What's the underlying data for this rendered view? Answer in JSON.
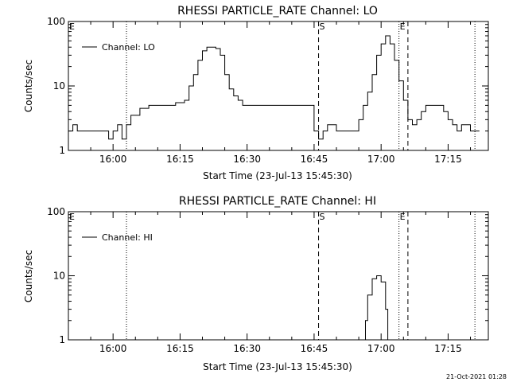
{
  "footer_timestamp": "21-Oct-2021 01:28",
  "chart_data": [
    {
      "type": "line",
      "title": "RHESSI PARTICLE_RATE Channel: LO",
      "xlabel": "Start Time (23-Jul-13 15:45:30)",
      "ylabel": "Counts/sec",
      "yscale": "log",
      "ylim": [
        1,
        100
      ],
      "xlim": [
        "15:50",
        "17:24"
      ],
      "x_ticks": [
        "16:00",
        "16:15",
        "16:30",
        "16:45",
        "17:00",
        "17:15"
      ],
      "y_ticks": [
        "1",
        "10",
        "100"
      ],
      "legend": {
        "placement": "top-left",
        "entries": [
          "Channel: LO"
        ]
      },
      "markers": [
        {
          "label": "E",
          "time": "15:50",
          "style": "dotted"
        },
        {
          "time": "16:03",
          "style": "dotted"
        },
        {
          "label": "S",
          "time": "16:46",
          "style": "dashed"
        },
        {
          "label": "E",
          "time": "17:04",
          "style": "dotted"
        },
        {
          "time": "17:06",
          "style": "dashed"
        },
        {
          "time": "17:21",
          "style": "dotted"
        }
      ],
      "series": [
        {
          "name": "Channel: LO",
          "x": [
            "15:50",
            "15:51",
            "15:52",
            "15:55",
            "15:58",
            "15:59",
            "16:00",
            "16:01",
            "16:02",
            "16:03",
            "16:04",
            "16:06",
            "16:08",
            "16:10",
            "16:12",
            "16:14",
            "16:15",
            "16:16",
            "16:17",
            "16:18",
            "16:19",
            "16:20",
            "16:21",
            "16:22",
            "16:23",
            "16:24",
            "16:25",
            "16:26",
            "16:27",
            "16:28",
            "16:29",
            "16:30",
            "16:32",
            "16:34",
            "16:36",
            "16:38",
            "16:40",
            "16:42",
            "16:44",
            "16:45",
            "16:46",
            "16:47",
            "16:48",
            "16:50",
            "16:52",
            "16:54",
            "16:55",
            "16:56",
            "16:57",
            "16:58",
            "16:59",
            "17:00",
            "17:01",
            "17:02",
            "17:03",
            "17:04",
            "17:05",
            "17:06",
            "17:07",
            "17:08",
            "17:09",
            "17:10",
            "17:12",
            "17:14",
            "17:15",
            "17:16",
            "17:17",
            "17:18",
            "17:20",
            "17:22"
          ],
          "y": [
            2,
            2.5,
            2,
            2,
            2,
            1.5,
            2,
            2.5,
            1.5,
            2.5,
            3.5,
            4.5,
            5,
            5,
            5,
            5.5,
            5.5,
            6,
            10,
            15,
            25,
            35,
            40,
            40,
            38,
            30,
            15,
            9,
            7,
            6,
            5,
            5,
            5,
            5,
            5,
            5,
            5,
            5,
            5,
            2,
            1.5,
            2,
            2.5,
            2,
            2,
            2,
            3,
            5,
            8,
            15,
            30,
            45,
            60,
            45,
            25,
            12,
            6,
            3,
            2.5,
            3,
            4,
            5,
            5,
            4,
            3,
            2.5,
            2,
            2.5,
            2,
            2
          ]
        }
      ]
    },
    {
      "type": "line",
      "title": "RHESSI PARTICLE_RATE Channel: HI",
      "xlabel": "Start Time (23-Jul-13 15:45:30)",
      "ylabel": "Counts/sec",
      "yscale": "log",
      "ylim": [
        1,
        100
      ],
      "xlim": [
        "15:50",
        "17:24"
      ],
      "x_ticks": [
        "16:00",
        "16:15",
        "16:30",
        "16:45",
        "17:00",
        "17:15"
      ],
      "y_ticks": [
        "1",
        "10",
        "100"
      ],
      "legend": {
        "placement": "top-left",
        "entries": [
          "Channel: HI"
        ]
      },
      "markers": [
        {
          "label": "E",
          "time": "15:50",
          "style": "dotted"
        },
        {
          "time": "16:03",
          "style": "dotted"
        },
        {
          "label": "S",
          "time": "16:46",
          "style": "dashed"
        },
        {
          "label": "E",
          "time": "17:04",
          "style": "dotted"
        },
        {
          "time": "17:06",
          "style": "dashed"
        },
        {
          "time": "17:21",
          "style": "dotted"
        }
      ],
      "series": [
        {
          "name": "Channel: HI",
          "x": [
            "16:56",
            "16:56.5",
            "16:57",
            "16:58",
            "16:59",
            "17:00",
            "17:01",
            "17:01.5"
          ],
          "y": [
            1,
            2,
            5,
            9,
            10,
            8,
            3,
            1
          ]
        }
      ]
    }
  ]
}
